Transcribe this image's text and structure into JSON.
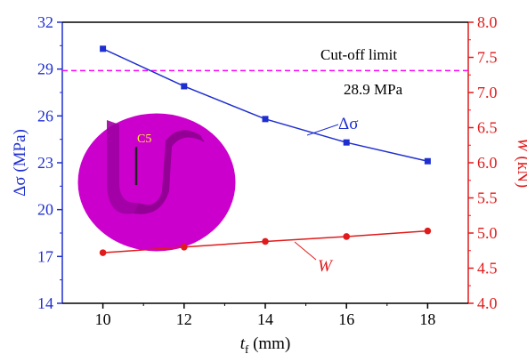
{
  "chart_data": {
    "type": "line",
    "x": [
      10,
      12,
      14,
      16,
      18
    ],
    "xlabel_main": "t",
    "xlabel_sub": "f",
    "xlabel_unit": " (mm)",
    "xlim": [
      9,
      19
    ],
    "xticks": [
      10,
      12,
      14,
      16,
      18
    ],
    "y_left": {
      "label_symbol": "Δσ",
      "label_unit": " (MPa)",
      "lim": [
        14,
        32
      ],
      "ticks": [
        14,
        17,
        20,
        23,
        26,
        29,
        32
      ],
      "color": "#1f2fcf"
    },
    "y_right": {
      "label_symbol": "W",
      "label_unit": " (kN)",
      "lim": [
        4.0,
        8.0
      ],
      "ticks": [
        "4.0",
        "4.5",
        "5.0",
        "5.5",
        "6.0",
        "6.5",
        "7.0",
        "7.5",
        "8.0"
      ],
      "color": "#e01b1b"
    },
    "series": [
      {
        "name": "Δσ",
        "axis": "left",
        "marker": "square",
        "color": "#1f2fcf",
        "values": [
          30.3,
          27.9,
          25.8,
          24.3,
          23.1
        ]
      },
      {
        "name": "W",
        "axis": "right",
        "marker": "circle",
        "color": "#e01b1b",
        "values": [
          4.72,
          4.8,
          4.88,
          4.95,
          5.03
        ]
      }
    ],
    "cutoff": {
      "value": 28.9,
      "label_line1": "Cut-off limit",
      "label_line2": "28.9 MPa",
      "color": "#ff00ff"
    },
    "inset": {
      "label": "C5",
      "label_color": "#ffee33",
      "fill": "#cc00cc"
    }
  }
}
